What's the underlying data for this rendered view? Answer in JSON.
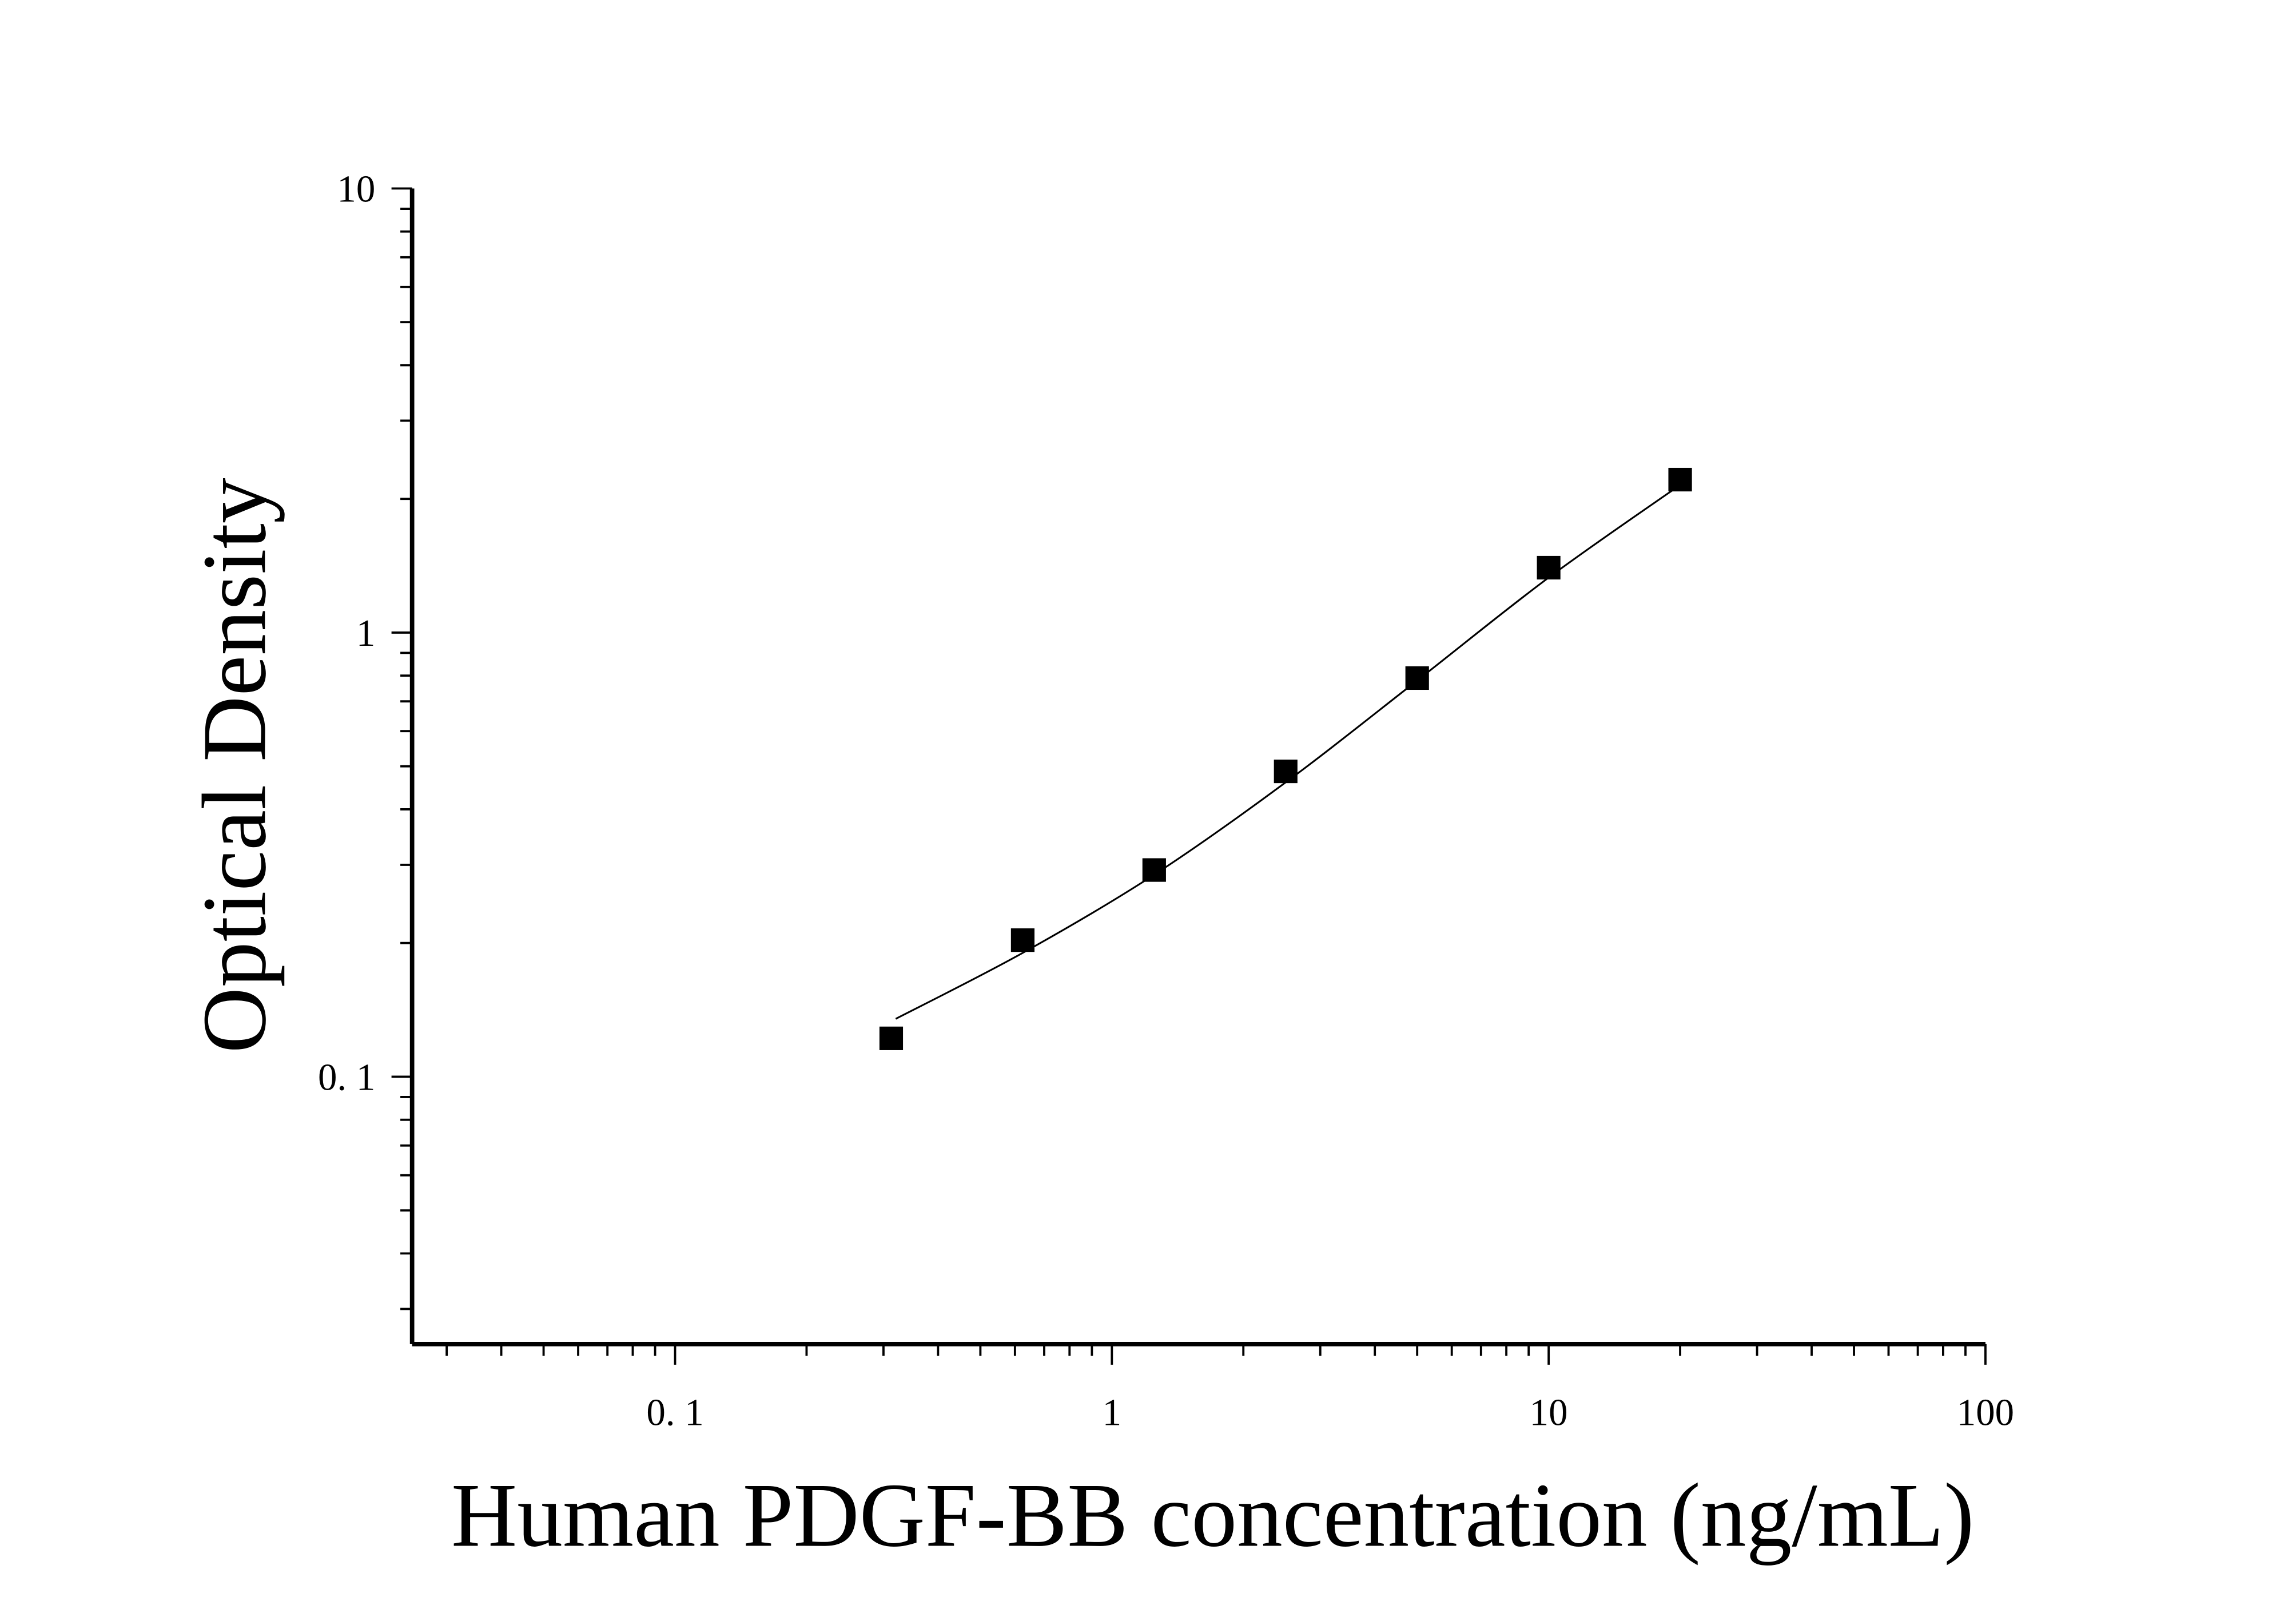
{
  "chart_data": {
    "type": "scatter",
    "title": "",
    "xlabel": "Human PDGF-BB concentration (ng/mL)",
    "ylabel": "Optical Density",
    "x_scale": "log",
    "y_scale": "log",
    "xlim": [
      0.025,
      100
    ],
    "ylim": [
      0.025,
      10
    ],
    "x_ticks": [
      {
        "value": 0.1,
        "label": "0. 1"
      },
      {
        "value": 1,
        "label": "1"
      },
      {
        "value": 10,
        "label": "10"
      },
      {
        "value": 100,
        "label": "100"
      }
    ],
    "y_ticks": [
      {
        "value": 0.1,
        "label": "0. 1"
      },
      {
        "value": 1,
        "label": "1"
      },
      {
        "value": 10,
        "label": "10"
      }
    ],
    "grid": false,
    "marker": "filled-square",
    "color": "#000000",
    "points": {
      "x": [
        0.3125,
        0.625,
        1.25,
        2.5,
        5,
        10,
        20
      ],
      "y": [
        0.122,
        0.203,
        0.292,
        0.487,
        0.79,
        1.4,
        2.21
      ]
    },
    "fit_curve": {
      "x": [
        0.32,
        0.625,
        1.25,
        2.5,
        5,
        10,
        20
      ],
      "y": [
        0.135,
        0.19,
        0.285,
        0.46,
        0.78,
        1.33,
        2.15
      ]
    }
  }
}
